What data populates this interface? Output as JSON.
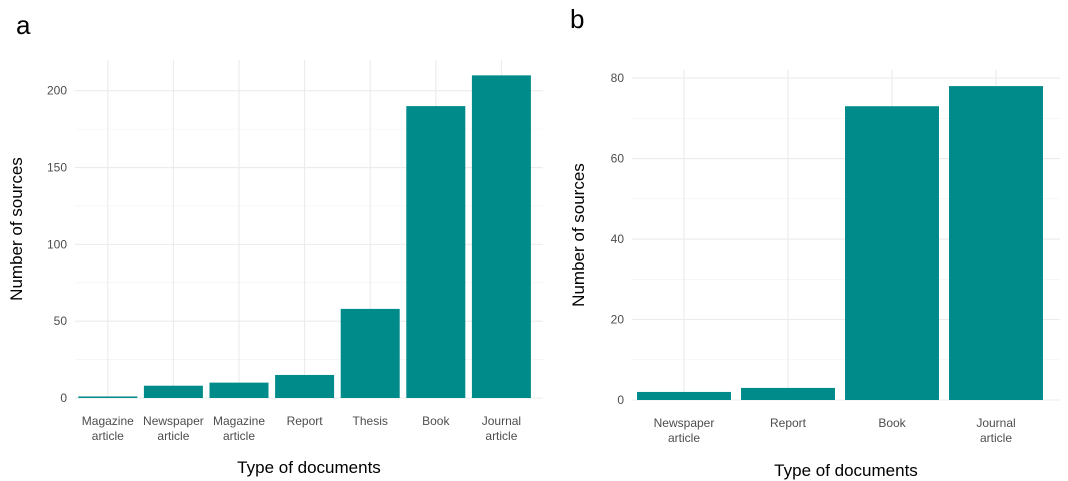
{
  "chart_data": [
    {
      "type": "bar",
      "panel": "a",
      "title": "",
      "xlabel": "Type of documents",
      "ylabel": "Number of sources",
      "categories": [
        [
          "Magazine",
          "article"
        ],
        [
          "Newspaper",
          "article"
        ],
        [
          "Magazine",
          "article"
        ],
        [
          "Report"
        ],
        [
          "Thesis"
        ],
        [
          "Book"
        ],
        [
          "Journal",
          "article"
        ]
      ],
      "values": [
        1,
        8,
        10,
        15,
        58,
        190,
        210
      ],
      "ylim": [
        0,
        220
      ],
      "yticks": [
        0,
        50,
        100,
        150,
        200
      ],
      "grid": true,
      "bar_color": "#008b8b"
    },
    {
      "type": "bar",
      "panel": "b",
      "title": "",
      "xlabel": "Type of documents",
      "ylabel": "Number of sources",
      "categories": [
        [
          "Newspaper",
          "article"
        ],
        [
          "Report"
        ],
        [
          "Book"
        ],
        [
          "Journal",
          "article"
        ]
      ],
      "values": [
        2,
        3,
        73,
        78
      ],
      "ylim": [
        0,
        82
      ],
      "yticks": [
        0,
        20,
        40,
        60,
        80
      ],
      "grid": true,
      "bar_color": "#008b8b"
    }
  ]
}
